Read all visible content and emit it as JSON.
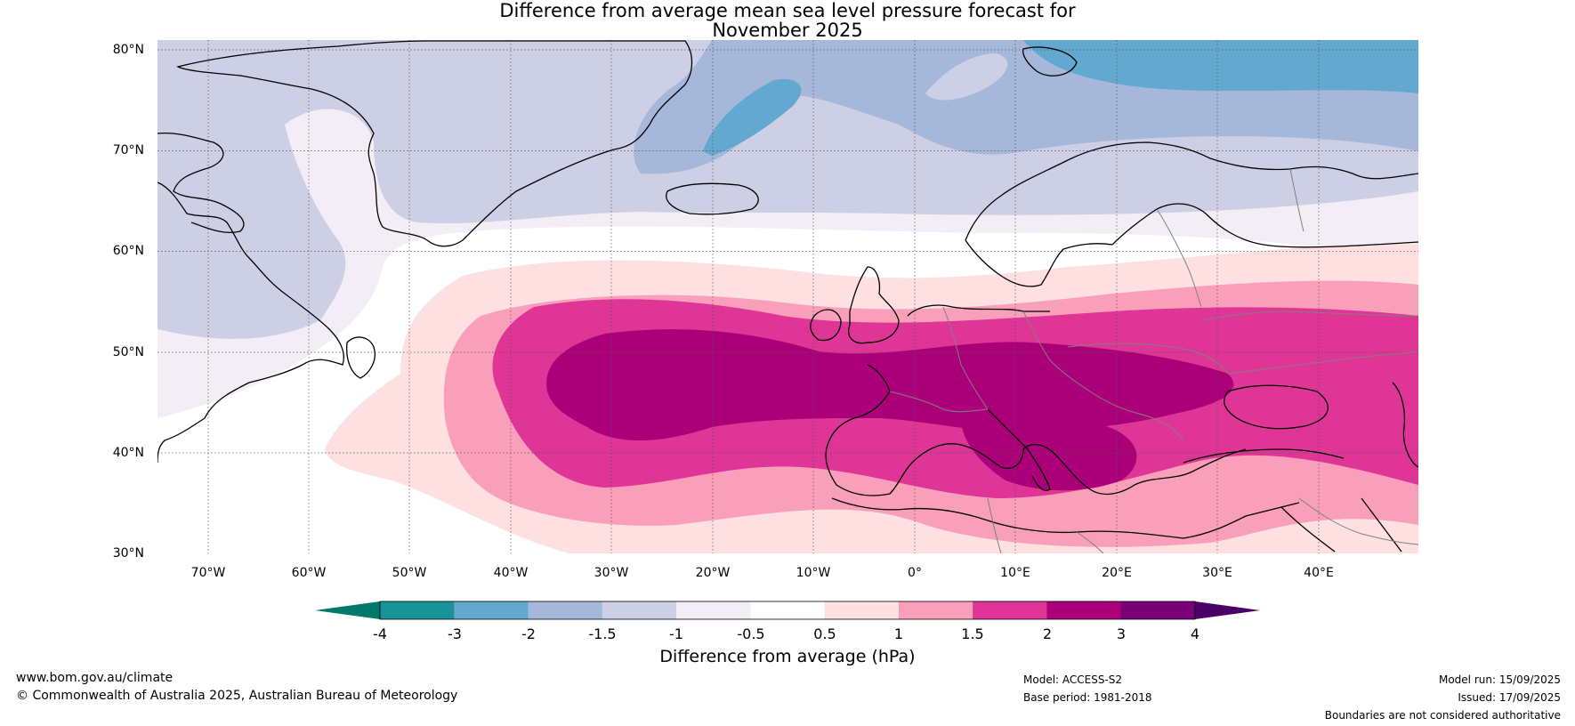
{
  "title": {
    "line1": "Difference from average mean sea level pressure forecast for",
    "line2": "November 2025"
  },
  "map": {
    "projection": "equirectangular",
    "lon_range": [
      -75,
      50
    ],
    "lat_range": [
      30,
      81
    ],
    "lat_labels": [
      "30°N",
      "40°N",
      "50°N",
      "60°N",
      "70°N",
      "80°N"
    ],
    "lat_values": [
      30,
      40,
      50,
      60,
      70,
      80
    ],
    "lon_labels": [
      "70°W",
      "60°W",
      "50°W",
      "40°W",
      "30°W",
      "20°W",
      "10°W",
      "0°",
      "10°E",
      "20°E",
      "30°E",
      "40°E"
    ],
    "lon_values": [
      -70,
      -60,
      -50,
      -40,
      -30,
      -20,
      -10,
      0,
      10,
      20,
      30,
      40
    ],
    "coastline_color": "#000000",
    "border_color": "#808080"
  },
  "colorbar": {
    "title": "Difference from average (hPa)",
    "tick_labels": [
      "-4",
      "-3",
      "-2",
      "-1.5",
      "-1",
      "-0.5",
      "0.5",
      "1",
      "1.5",
      "2",
      "3",
      "4"
    ],
    "under_color": "#00796b",
    "over_color": "#4a0066",
    "colors": [
      "#1a9299",
      "#62a8cf",
      "#a5b8da",
      "#cdcfe4",
      "#f3edf5",
      "#ffffff",
      "#fde0df",
      "#f99fba",
      "#df3596",
      "#ab0079",
      "#790079"
    ]
  },
  "footer": {
    "website": "www.bom.gov.au/climate",
    "copyright": "© Commonwealth of Australia 2025, Australian Bureau of Meteorology",
    "model": "Model: ACCESS-S2",
    "base_period": "Base period: 1981-2018",
    "model_run": "Model run: 15/09/2025",
    "issued": "Issued: 17/09/2025",
    "disclaimer": "Boundaries are not considered authoritative"
  }
}
